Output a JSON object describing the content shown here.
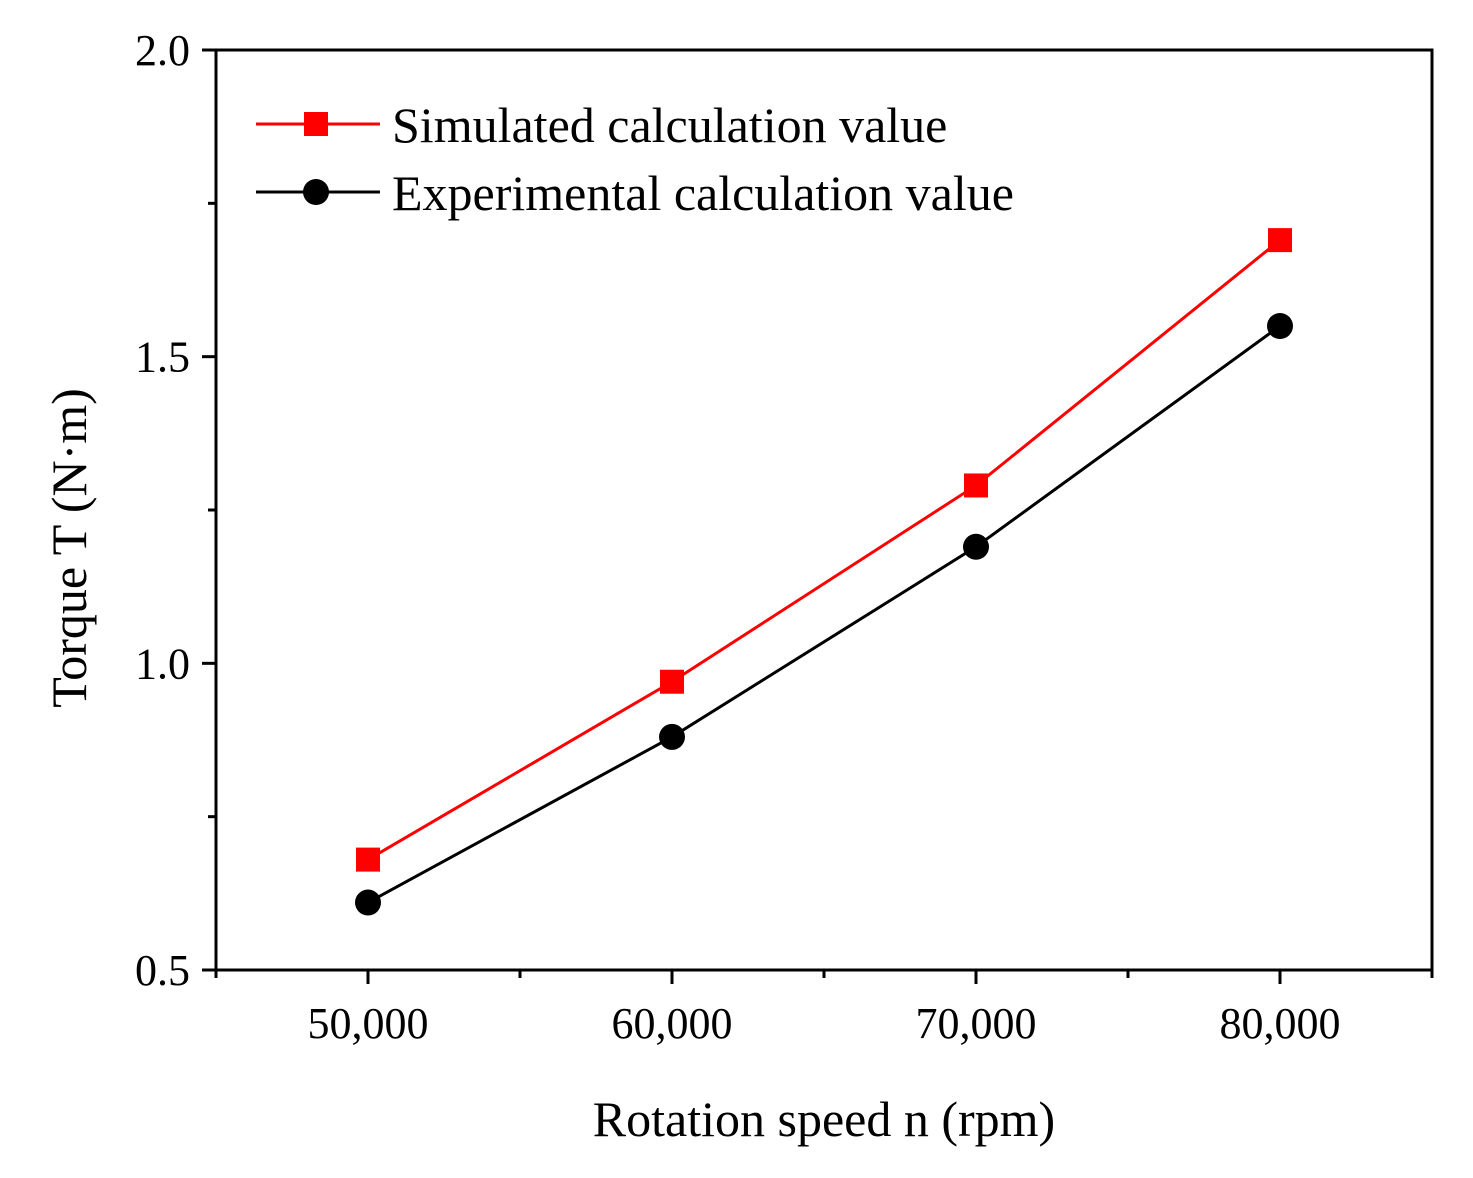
{
  "chart_data": {
    "type": "line",
    "title": "",
    "xlabel": "Rotation speed n (rpm)",
    "ylabel": "Torque T (N·m)",
    "x": [
      50000,
      60000,
      70000,
      80000
    ],
    "x_tick_labels": [
      "50,000",
      "60,000",
      "70,000",
      "80,000"
    ],
    "xlim": [
      45000,
      85000
    ],
    "ylim": [
      0.5,
      2.0
    ],
    "y_ticks": [
      0.5,
      1.0,
      1.5,
      2.0
    ],
    "y_tick_labels": [
      "0.5",
      "1.0",
      "1.5",
      "2.0"
    ],
    "grid": false,
    "legend_position": "top-left",
    "series": [
      {
        "name": "Simulated calculation value",
        "marker": "square",
        "color": "#ff0000",
        "values": [
          0.68,
          0.97,
          1.29,
          1.69
        ]
      },
      {
        "name": "Experimental calculation value",
        "marker": "circle",
        "color": "#000000",
        "values": [
          0.61,
          0.88,
          1.19,
          1.55
        ]
      }
    ]
  }
}
